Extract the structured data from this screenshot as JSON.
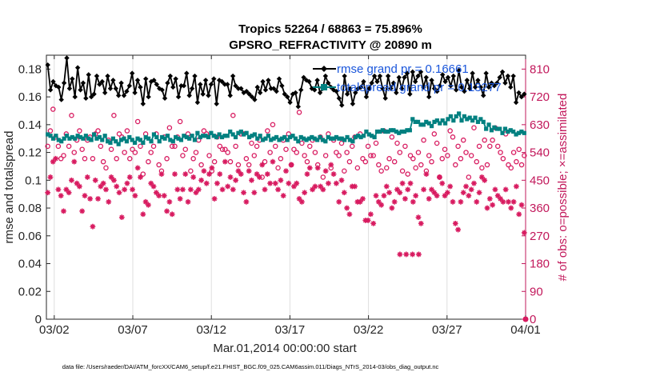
{
  "chart_data": {
    "type": "line",
    "title": "Tropics 52264 / 68863 = 75.896%",
    "subtitle": "GPSRO_REFRACTIVITY @ 20890 m",
    "xlabel": "Mar.01,2014 00:00:00 start",
    "ylabel": "rmse and totalspread",
    "ylabel_right": "# of obs: o=possible; ×=assimilated",
    "footnote": "data file: /Users/raeder/DAI/ATM_forcXX/CAM6_setup/f.e21.FHIST_BGC.f09_025.CAM6assim.011/Diags_NTrS_2014-03/obs_diag_output.nc",
    "x_ticks": [
      "03/02",
      "03/07",
      "03/12",
      "03/17",
      "03/22",
      "03/27",
      "04/01"
    ],
    "x_tick_days": [
      1,
      6,
      11,
      16,
      21,
      26,
      31
    ],
    "xlim_days": [
      0.5,
      31.0
    ],
    "y_ticks": [
      "0",
      "0.02",
      "0.04",
      "0.06",
      "0.08",
      "0.1",
      "0.12",
      "0.14",
      "0.16",
      "0.18"
    ],
    "ylim": [
      0,
      0.19
    ],
    "y2_ticks": [
      "0",
      "90",
      "180",
      "270",
      "360",
      "450",
      "540",
      "630",
      "720",
      "810"
    ],
    "y2lim": [
      0,
      855
    ],
    "legend_position": "top-right",
    "series": [
      {
        "name": "rmse",
        "legend": "rmse grand pr = 0.16661",
        "color": "#000000",
        "axis": "left",
        "values": [
          0.183,
          0.165,
          0.171,
          0.168,
          0.167,
          0.158,
          0.17,
          0.188,
          0.166,
          0.173,
          0.16,
          0.181,
          0.165,
          0.17,
          0.159,
          0.176,
          0.16,
          0.162,
          0.175,
          0.169,
          0.171,
          0.163,
          0.175,
          0.166,
          0.172,
          0.166,
          0.161,
          0.17,
          0.161,
          0.164,
          0.168,
          0.177,
          0.163,
          0.172,
          0.167,
          0.155,
          0.173,
          0.16,
          0.171,
          0.172,
          0.169,
          0.166,
          0.165,
          0.159,
          0.17,
          0.175,
          0.167,
          0.173,
          0.16,
          0.168,
          0.168,
          0.177,
          0.161,
          0.166,
          0.175,
          0.156,
          0.169,
          0.162,
          0.172,
          0.161,
          0.169,
          0.173,
          0.155,
          0.172,
          0.171,
          0.169,
          0.169,
          0.161,
          0.175,
          0.168,
          0.166,
          0.166,
          0.163,
          0.164,
          0.162,
          0.16,
          0.158,
          0.167,
          0.163,
          0.171,
          0.165,
          0.172,
          0.166,
          0.166,
          0.164,
          0.173,
          0.168,
          0.162,
          0.16,
          0.156,
          0.162,
          0.163,
          0.153,
          0.165,
          0.174,
          0.172,
          0.171,
          0.166,
          0.165,
          0.172,
          0.163,
          0.166,
          0.175,
          0.17,
          0.167,
          0.165,
          0.164,
          0.159,
          0.154,
          0.175,
          0.162,
          0.166,
          0.155,
          0.163,
          0.166,
          0.167,
          0.171,
          0.16,
          0.166,
          0.17,
          0.175,
          0.171,
          0.175,
          0.166,
          0.159,
          0.175,
          0.166,
          0.17,
          0.163,
          0.174,
          0.166,
          0.174,
          0.177,
          0.162,
          0.178,
          0.171,
          0.175,
          0.178,
          0.167,
          0.174,
          0.16,
          0.172,
          0.166,
          0.164,
          0.168,
          0.176,
          0.171,
          0.174,
          0.168,
          0.175,
          0.165,
          0.179,
          0.167,
          0.164,
          0.172,
          0.166,
          0.177,
          0.167,
          0.172,
          0.167,
          0.161,
          0.177,
          0.167,
          0.17,
          0.168,
          0.17,
          0.174,
          0.178,
          0.17,
          0.175,
          0.167,
          0.175,
          0.156,
          0.163,
          0.16,
          0.162
        ]
      },
      {
        "name": "totalspread",
        "legend": "totalspread grand pr = 0.13277",
        "color": "#008080",
        "axis": "left",
        "values": [
          0.133,
          0.132,
          0.13,
          0.132,
          0.129,
          0.128,
          0.13,
          0.132,
          0.13,
          0.131,
          0.13,
          0.132,
          0.131,
          0.13,
          0.132,
          0.13,
          0.129,
          0.133,
          0.13,
          0.131,
          0.129,
          0.132,
          0.128,
          0.127,
          0.13,
          0.128,
          0.126,
          0.129,
          0.13,
          0.128,
          0.131,
          0.129,
          0.127,
          0.13,
          0.129,
          0.127,
          0.131,
          0.13,
          0.128,
          0.133,
          0.131,
          0.128,
          0.131,
          0.13,
          0.132,
          0.129,
          0.128,
          0.131,
          0.13,
          0.129,
          0.132,
          0.131,
          0.13,
          0.132,
          0.129,
          0.134,
          0.131,
          0.132,
          0.132,
          0.131,
          0.134,
          0.132,
          0.131,
          0.133,
          0.131,
          0.132,
          0.132,
          0.135,
          0.133,
          0.131,
          0.134,
          0.135,
          0.133,
          0.134,
          0.131,
          0.132,
          0.133,
          0.13,
          0.132,
          0.129,
          0.13,
          0.132,
          0.129,
          0.13,
          0.131,
          0.129,
          0.13,
          0.131,
          0.129,
          0.131,
          0.132,
          0.13,
          0.128,
          0.131,
          0.13,
          0.129,
          0.13,
          0.131,
          0.13,
          0.129,
          0.131,
          0.129,
          0.128,
          0.131,
          0.13,
          0.13,
          0.131,
          0.13,
          0.13,
          0.129,
          0.131,
          0.129,
          0.128,
          0.131,
          0.132,
          0.131,
          0.132,
          0.135,
          0.133,
          0.132,
          0.131,
          0.135,
          0.135,
          0.136,
          0.135,
          0.135,
          0.136,
          0.136,
          0.135,
          0.134,
          0.135,
          0.135,
          0.136,
          0.136,
          0.144,
          0.142,
          0.142,
          0.14,
          0.14,
          0.142,
          0.141,
          0.139,
          0.142,
          0.143,
          0.141,
          0.143,
          0.141,
          0.144,
          0.146,
          0.143,
          0.146,
          0.148,
          0.143,
          0.146,
          0.144,
          0.145,
          0.143,
          0.145,
          0.142,
          0.144,
          0.142,
          0.137,
          0.14,
          0.136,
          0.138,
          0.137,
          0.137,
          0.134,
          0.137,
          0.135,
          0.136,
          0.135,
          0.133,
          0.134,
          0.135,
          0.134
        ]
      },
      {
        "name": "possible",
        "legend": "",
        "color": "#d81b60",
        "axis": "right",
        "marker": "circle",
        "values": [
          560,
          610,
          680,
          590,
          560,
          520,
          530,
          600,
          560,
          660,
          540,
          580,
          610,
          550,
          520,
          580,
          590,
          520,
          600,
          610,
          560,
          510,
          490,
          580,
          550,
          660,
          520,
          600,
          590,
          540,
          610,
          520,
          550,
          540,
          640,
          560,
          470,
          600,
          510,
          540,
          560,
          600,
          500,
          480,
          590,
          520,
          620,
          560,
          560,
          590,
          640,
          530,
          550,
          600,
          480,
          520,
          540,
          580,
          500,
          610,
          600,
          530,
          480,
          510,
          590,
          560,
          550,
          550,
          540,
          510,
          660,
          560,
          500,
          600,
          600,
          520,
          500,
          570,
          530,
          560,
          580,
          460,
          510,
          610,
          540,
          630,
          560,
          490,
          520,
          580,
          550,
          600,
          500,
          550,
          540,
          670,
          570,
          530,
          510,
          560,
          580,
          540,
          500,
          590,
          460,
          530,
          600,
          490,
          580,
          540,
          530,
          570,
          480,
          540,
          510,
          560,
          590,
          490,
          600,
          520,
          510,
          560,
          530,
          530,
          570,
          500,
          480,
          610,
          490,
          520,
          590,
          510,
          570,
          540,
          480,
          560,
          470,
          530,
          520,
          490,
          540,
          500,
          580,
          480,
          530,
          510,
          600,
          570,
          460,
          520,
          550,
          530,
          610,
          590,
          500,
          560,
          520,
          580,
          540,
          460,
          530,
          620,
          510,
          560,
          490,
          580,
          500,
          560,
          580,
          620,
          560,
          540,
          520,
          600,
          500,
          490,
          540,
          510,
          550,
          500,
          530
        ]
      },
      {
        "name": "assimilated",
        "legend": "",
        "color": "#d81b60",
        "axis": "right",
        "marker": "asterisk",
        "values": [
          410,
          460,
          510,
          520,
          420,
          400,
          350,
          420,
          410,
          450,
          510,
          440,
          430,
          350,
          400,
          460,
          390,
          300,
          450,
          390,
          430,
          440,
          420,
          380,
          460,
          450,
          430,
          410,
          330,
          420,
          440,
          460,
          420,
          400,
          490,
          460,
          340,
          380,
          370,
          440,
          430,
          410,
          400,
          470,
          400,
          350,
          380,
          340,
          470,
          420,
          390,
          420,
          470,
          380,
          420,
          460,
          410,
          420,
          450,
          480,
          440,
          470,
          490,
          390,
          440,
          470,
          420,
          510,
          430,
          460,
          420,
          450,
          480,
          470,
          410,
          380,
          480,
          450,
          410,
          470,
          460,
          500,
          420,
          470,
          440,
          510,
          440,
          420,
          450,
          400,
          480,
          440,
          500,
          430,
          440,
          390,
          380,
          410,
          470,
          490,
          420,
          430,
          490,
          430,
          420,
          480,
          440,
          500,
          470,
          440,
          380,
          450,
          410,
          360,
          340,
          430,
          430,
          380,
          380,
          390,
          320,
          320,
          340,
          310,
          400,
          380,
          370,
          400,
          430,
          410,
          360,
          380,
          420,
          410,
          440,
          390,
          420,
          440,
          380,
          400,
          330,
          310,
          420,
          470,
          390,
          420,
          410,
          400,
          460,
          440,
          400,
          410,
          430,
          380,
          310,
          290,
          380,
          410,
          430,
          400,
          420,
          440,
          380,
          410,
          460,
          450,
          360,
          390,
          370,
          420,
          400,
          390,
          380,
          420,
          380,
          360,
          380,
          430,
          340,
          370,
          280
        ]
      }
    ],
    "extra_marks": {
      "possible": [
        {
          "day": 31.0,
          "value": 0
        }
      ],
      "assimilated": [
        {
          "day": 23.0,
          "value": 210
        },
        {
          "day": 23.4,
          "value": 210
        },
        {
          "day": 23.8,
          "value": 210
        },
        {
          "day": 24.2,
          "value": 210
        },
        {
          "day": 31.0,
          "value": 0
        }
      ]
    }
  }
}
